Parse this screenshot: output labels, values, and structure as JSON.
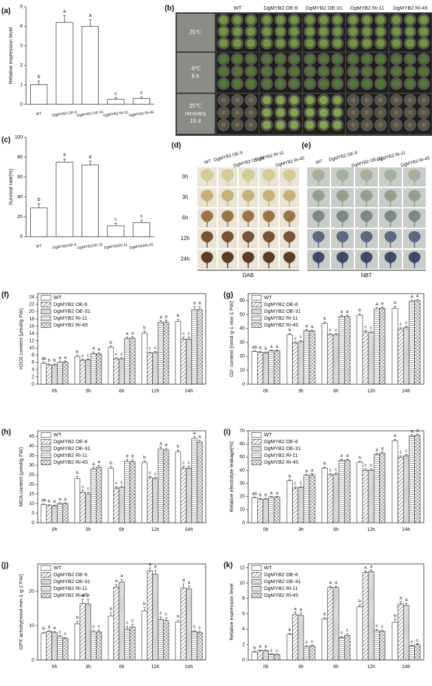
{
  "chart_data": [
    {
      "type": "bar",
      "label": "(a)",
      "ylabel": "Relative expression level",
      "categories": [
        "WT",
        "DgMYB2 OE-6",
        "DgMYB2 OE-31",
        "DgMYB2 Ri-11",
        "DgMYB2 Ri-45"
      ],
      "values": [
        1,
        4.2,
        4.0,
        0.25,
        0.3
      ],
      "errors": [
        0.2,
        0.35,
        0.35,
        0.08,
        0.08
      ],
      "letters": [
        "b",
        "a",
        "a",
        "c",
        "c"
      ],
      "color": "#ffffff",
      "ylim": [
        0,
        5
      ],
      "yticks": [
        0,
        1,
        2,
        3,
        4,
        5
      ]
    },
    {
      "type": "bar",
      "label": "(c)",
      "ylabel": "Survival rate(%)",
      "categories": [
        "WT",
        "DgMYB2OE-6",
        "DgMYB2OE-31",
        "DgMYB2Ri-11",
        "DgMYB2Ri-45"
      ],
      "values": [
        29,
        75,
        72,
        11,
        14
      ],
      "errors": [
        4,
        3,
        4,
        2.5,
        2.5
      ],
      "letters": [
        "b",
        "a",
        "a",
        "c",
        "c"
      ],
      "color": "#ffffff",
      "ylim": [
        0,
        100
      ],
      "yticks": [
        0,
        20,
        40,
        60,
        80,
        100
      ]
    },
    {
      "type": "grouped-bar",
      "label": "(f)",
      "ylabel": "H2O2 content (μmol/g FW)",
      "categories": [
        "0h",
        "3h",
        "6h",
        "12h",
        "24h"
      ],
      "legend": "upper left",
      "ylim": [
        0,
        25
      ],
      "yticks": [
        0,
        2,
        4,
        6,
        8,
        10,
        12,
        14,
        16,
        18,
        20,
        22,
        24
      ],
      "series": [
        {
          "name": "WT",
          "hatch": "none",
          "values": [
            5.8,
            7.6,
            10.2,
            14.1,
            17.3
          ],
          "errors": [
            0.3,
            0.4,
            0.4,
            0.5,
            0.6
          ],
          "letters": [
            "ab",
            "b",
            "b",
            "b",
            "b"
          ]
        },
        {
          "name": "DgMYB2 OE-6",
          "hatch": "diag",
          "values": [
            5.3,
            6.6,
            7.0,
            8.6,
            12.4
          ],
          "errors": [
            0.3,
            0.3,
            0.3,
            0.3,
            0.6
          ],
          "letters": [
            "b",
            "c",
            "c",
            "c",
            "c"
          ]
        },
        {
          "name": "DgMYB2 OE-31",
          "hatch": "diag-dense",
          "values": [
            5.3,
            6.7,
            7.0,
            8.7,
            12.4
          ],
          "errors": [
            0.3,
            0.3,
            0.3,
            0.3,
            0.6
          ],
          "letters": [
            "b",
            "c",
            "c",
            "c",
            "c"
          ]
        },
        {
          "name": "DgMYB2 Ri-11",
          "hatch": "horizontal",
          "values": [
            6.0,
            8.5,
            12.6,
            17.1,
            20.6
          ],
          "errors": [
            0.3,
            0.4,
            0.4,
            0.5,
            0.8
          ],
          "letters": [
            "a",
            "a",
            "a",
            "a",
            "a"
          ]
        },
        {
          "name": "DgMYB2 Ri-45",
          "hatch": "cross",
          "values": [
            6.1,
            8.3,
            12.7,
            17.2,
            20.6
          ],
          "errors": [
            0.3,
            0.4,
            0.4,
            0.5,
            0.8
          ],
          "letters": [
            "a",
            "a",
            "a",
            "a",
            "a"
          ]
        }
      ]
    },
    {
      "type": "grouped-bar",
      "label": "(g)",
      "ylabel": "O2- content (nmol·g-1·min-1 FW)",
      "categories": [
        "0h",
        "3h",
        "6h",
        "12h",
        "24h"
      ],
      "legend": "upper left",
      "ylim": [
        0,
        65
      ],
      "yticks": [
        0,
        10,
        20,
        30,
        40,
        50,
        60
      ],
      "series": [
        {
          "name": "WT",
          "hatch": "none",
          "values": [
            23.5,
            35.5,
            43.5,
            49.5,
            54.5
          ],
          "errors": [
            0.6,
            0.8,
            1.2,
            1,
            1.5
          ],
          "letters": [
            "ab",
            "b",
            "b",
            "b",
            "b"
          ]
        },
        {
          "name": "DgMYB2 OE-6",
          "hatch": "diag",
          "values": [
            22.8,
            29.5,
            35.5,
            37.5,
            39.5
          ],
          "errors": [
            0.6,
            0.8,
            0.8,
            1,
            1
          ],
          "letters": [
            "b",
            "c",
            "c",
            "c",
            "c"
          ]
        },
        {
          "name": "DgMYB2 OE-31",
          "hatch": "diag-dense",
          "values": [
            22.5,
            30.5,
            35.5,
            37,
            40.5
          ],
          "errors": [
            0.6,
            0.8,
            0.8,
            1,
            1
          ],
          "letters": [
            "b",
            "c",
            "c",
            "c",
            "c"
          ]
        },
        {
          "name": "DgMYB2 Ri-11",
          "hatch": "horizontal",
          "values": [
            24,
            38.5,
            48.5,
            54,
            59.5
          ],
          "errors": [
            0.6,
            0.8,
            1.2,
            1,
            1
          ],
          "letters": [
            "a",
            "a",
            "a",
            "a",
            "a"
          ]
        },
        {
          "name": "DgMYB2 Ri-45",
          "hatch": "cross",
          "values": [
            24,
            38,
            48.5,
            54.5,
            60
          ],
          "errors": [
            0.6,
            0.8,
            1.2,
            1,
            1
          ],
          "letters": [
            "a",
            "a",
            "a",
            "a",
            "a"
          ]
        }
      ]
    },
    {
      "type": "grouped-bar",
      "label": "(h)",
      "ylabel": "MDA content (μmol/g FW)",
      "categories": [
        "0h",
        "3h",
        "6h",
        "12h",
        "24h"
      ],
      "legend": "upper left",
      "ylim": [
        0,
        48
      ],
      "yticks": [
        0,
        5,
        10,
        15,
        20,
        25,
        30,
        35,
        40,
        45
      ],
      "series": [
        {
          "name": "WT",
          "hatch": "none",
          "values": [
            9.5,
            23,
            28.5,
            31.5,
            37
          ],
          "errors": [
            0.4,
            1.2,
            0.8,
            0.8,
            1
          ],
          "letters": [
            "ab",
            "b",
            "b",
            "b",
            "b"
          ]
        },
        {
          "name": "DgMYB2 OE-6",
          "hatch": "diag",
          "values": [
            9,
            16,
            18,
            23.5,
            28.5
          ],
          "errors": [
            0.4,
            1,
            0.8,
            0.8,
            1
          ],
          "letters": [
            "b",
            "c",
            "c",
            "c",
            "c"
          ]
        },
        {
          "name": "DgMYB2 OE-31",
          "hatch": "diag-dense",
          "values": [
            8.8,
            15,
            18.5,
            23,
            28.5
          ],
          "errors": [
            0.4,
            1,
            0.8,
            0.8,
            1
          ],
          "letters": [
            "b",
            "c",
            "c",
            "c",
            "c"
          ]
        },
        {
          "name": "DgMYB2 Ri-11",
          "hatch": "horizontal",
          "values": [
            10,
            28,
            32,
            38.5,
            44
          ],
          "errors": [
            0.4,
            1,
            1,
            1,
            1
          ],
          "letters": [
            "a",
            "a",
            "a",
            "a",
            "a"
          ]
        },
        {
          "name": "DgMYB2 Ri-45",
          "hatch": "cross",
          "values": [
            10,
            29,
            32,
            38,
            42
          ],
          "errors": [
            0.4,
            1,
            1,
            1,
            1
          ],
          "letters": [
            "a",
            "a",
            "a",
            "a",
            "a"
          ]
        }
      ]
    },
    {
      "type": "grouped-bar",
      "label": "(i)",
      "ylabel": "Relative electrolyte leakage(%)",
      "categories": [
        "0h",
        "3h",
        "6h",
        "12h",
        "24h"
      ],
      "legend": "upper left",
      "ylim": [
        0,
        70
      ],
      "yticks": [
        0,
        10,
        20,
        30,
        40,
        50,
        60,
        70
      ],
      "series": [
        {
          "name": "WT",
          "hatch": "none",
          "values": [
            19,
            32,
            41.5,
            46,
            62.5
          ],
          "errors": [
            0.5,
            0.8,
            0.8,
            0.8,
            1
          ],
          "letters": [
            "ab",
            "b",
            "b",
            "b",
            "b"
          ]
        },
        {
          "name": "DgMYB2 OE-6",
          "hatch": "diag",
          "values": [
            18,
            26.5,
            36.5,
            40,
            50
          ],
          "errors": [
            0.5,
            0.8,
            0.8,
            1,
            1
          ],
          "letters": [
            "b",
            "c",
            "c",
            "c",
            "c"
          ]
        },
        {
          "name": "DgMYB2 OE-31",
          "hatch": "diag-dense",
          "values": [
            18,
            27,
            37,
            40,
            51
          ],
          "errors": [
            0.5,
            0.8,
            0.8,
            1,
            1
          ],
          "letters": [
            "b",
            "c",
            "c",
            "c",
            "c"
          ]
        },
        {
          "name": "DgMYB2 Ri-11",
          "hatch": "horizontal",
          "values": [
            19.5,
            36,
            47.5,
            52,
            66
          ],
          "errors": [
            0.5,
            0.8,
            1,
            1,
            1
          ],
          "letters": [
            "a",
            "a",
            "a",
            "a",
            "a"
          ]
        },
        {
          "name": "DgMYB2 Ri-45",
          "hatch": "cross",
          "values": [
            19.5,
            36.5,
            47.5,
            53,
            66.5
          ],
          "errors": [
            0.5,
            0.8,
            1,
            1,
            1
          ],
          "letters": [
            "a",
            "a",
            "a",
            "a",
            "a"
          ]
        }
      ]
    },
    {
      "type": "grouped-bar",
      "label": "(j)",
      "ylabel": "GPX activity(nmol·min-1·g-1 FW)",
      "categories": [
        "0h",
        "3h",
        "6h",
        "12h",
        "24h"
      ],
      "legend": "upper left",
      "ylim": [
        0,
        28
      ],
      "yticks": [
        0,
        10,
        20
      ],
      "series": [
        {
          "name": "WT",
          "hatch": "none",
          "values": [
            7.8,
            10.5,
            12.8,
            14.3,
            11
          ],
          "errors": [
            0.3,
            0.8,
            1,
            1,
            0.6
          ],
          "letters": [
            "b",
            "b",
            "b",
            "b",
            "b"
          ]
        },
        {
          "name": "DgMYB2 OE-6",
          "hatch": "diag",
          "values": [
            8.3,
            16.5,
            21.2,
            26,
            21
          ],
          "errors": [
            0.3,
            1.2,
            0.8,
            0.8,
            1.2
          ],
          "letters": [
            "a",
            "a",
            "a",
            "a",
            "a"
          ]
        },
        {
          "name": "DgMYB2 OE-31",
          "hatch": "diag-dense",
          "values": [
            8,
            16.3,
            22.7,
            25,
            20.7
          ],
          "errors": [
            0.3,
            1.5,
            0.8,
            1.2,
            0.8
          ],
          "letters": [
            "a",
            "a",
            "a",
            "a",
            "a"
          ]
        },
        {
          "name": "DgMYB2 Ri-11",
          "hatch": "horizontal",
          "values": [
            6.8,
            8.2,
            9,
            11.8,
            8.3
          ],
          "errors": [
            0.3,
            0.5,
            0.8,
            0.8,
            0.4
          ],
          "letters": [
            "c",
            "c",
            "c",
            "c",
            "c"
          ]
        },
        {
          "name": "DgMYB2 Ri-45",
          "hatch": "cross",
          "values": [
            6.3,
            8.2,
            9.6,
            11.5,
            8
          ],
          "errors": [
            0.3,
            0.5,
            0.8,
            0.8,
            0.4
          ],
          "letters": [
            "c",
            "c",
            "c",
            "c",
            "c"
          ]
        }
      ]
    },
    {
      "type": "grouped-bar",
      "label": "(k)",
      "ylabel": "Relative expression level",
      "categories": [
        "0h",
        "3h",
        "6h",
        "12h",
        "24h"
      ],
      "legend": "upper left",
      "ylim": [
        0,
        12.5
      ],
      "yticks": [
        0,
        2,
        4,
        6,
        8,
        10,
        12
      ],
      "series": [
        {
          "name": "WT",
          "hatch": "none",
          "values": [
            1,
            3.3,
            5.3,
            6.9,
            4.9
          ],
          "errors": [
            0.1,
            0.15,
            0.2,
            0.3,
            0.4
          ],
          "letters": [
            "b",
            "b",
            "b",
            "b",
            "b"
          ]
        },
        {
          "name": "DgMYB2 OE-6",
          "hatch": "diag",
          "values": [
            1.2,
            5.9,
            9.4,
            11.4,
            7.3
          ],
          "errors": [
            0.1,
            0.3,
            0.2,
            0.2,
            0.3
          ],
          "letters": [
            "a",
            "a",
            "a",
            "a",
            "a"
          ]
        },
        {
          "name": "DgMYB2 OE-31",
          "hatch": "diag-dense",
          "values": [
            1.2,
            5.8,
            9.4,
            11.5,
            7.1
          ],
          "errors": [
            0.1,
            0.3,
            0.2,
            0.2,
            0.3
          ],
          "letters": [
            "a",
            "a",
            "a",
            "a",
            "a"
          ]
        },
        {
          "name": "DgMYB2 Ri-11",
          "hatch": "horizontal",
          "values": [
            0.75,
            1.7,
            2.9,
            3.8,
            1.8
          ],
          "errors": [
            0.05,
            0.15,
            0.2,
            0.2,
            0.1
          ],
          "letters": [
            "c",
            "c",
            "c",
            "c",
            "c"
          ]
        },
        {
          "name": "DgMYB2 Ri-45",
          "hatch": "cross",
          "values": [
            0.7,
            1.8,
            3.2,
            3.7,
            2
          ],
          "errors": [
            0.05,
            0.15,
            0.2,
            0.2,
            0.1
          ],
          "letters": [
            "c",
            "c",
            "c",
            "c",
            "c"
          ]
        }
      ]
    }
  ],
  "photo_panels": [
    {
      "label": "(b)",
      "columns": [
        "WT",
        "DgMYB2 OE-6",
        "DgMYB2 OE-31",
        "DgMYB2 Ri-11",
        "DgMYB2 Ri-45"
      ],
      "rows": [
        [
          "25℃"
        ],
        [
          "-6℃",
          "6 h"
        ],
        [
          "25℃",
          "recovery",
          "15 d"
        ]
      ]
    },
    {
      "label": "(d)",
      "columns": [
        "WT",
        "DgMYB2 OE-6",
        "DgMYB2 OE-31",
        "DgMYB2 Ri-11",
        "DgMYB2 Ri-45"
      ],
      "rows": [
        "0h",
        "3h",
        "6h",
        "12h",
        "24h"
      ],
      "stain": "DAB"
    },
    {
      "label": "(e)",
      "columns": [
        "WT",
        "DgMYB2 OE-6",
        "DgMYB2 OE-31",
        "DgMYB2 Ri-11",
        "DgMYB2 Ri-45"
      ],
      "stain": "NBT"
    }
  ]
}
